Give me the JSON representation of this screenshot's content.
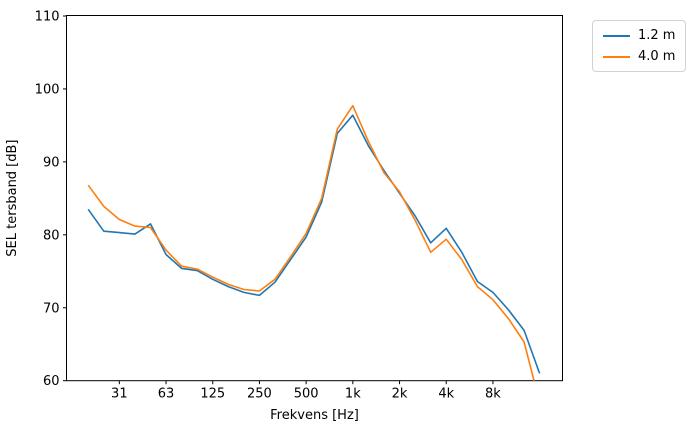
{
  "chart_data": {
    "type": "line",
    "title": "",
    "xlabel": "Frekvens [Hz]",
    "ylabel": "SEL tersband [dB]",
    "x_scale": "log",
    "x_unit": "Hz",
    "categories": [
      20,
      25,
      31.5,
      40,
      50,
      63,
      80,
      100,
      125,
      160,
      200,
      250,
      315,
      400,
      500,
      630,
      800,
      1000,
      1250,
      1600,
      2000,
      2500,
      3150,
      4000,
      5000,
      6300,
      8000,
      10000,
      12500,
      16000
    ],
    "series": [
      {
        "name": "1.2 m",
        "color": "#1f77b4",
        "values": [
          83.5,
          80.5,
          80.3,
          80.1,
          81.5,
          77.3,
          75.4,
          75.1,
          73.9,
          72.9,
          72.1,
          71.7,
          73.5,
          76.6,
          79.7,
          84.5,
          93.9,
          96.4,
          92.2,
          88.8,
          85.7,
          82.6,
          78.9,
          80.9,
          77.6,
          73.6,
          72.1,
          69.7,
          66.9,
          61.0
        ]
      },
      {
        "name": "4.0 m",
        "color": "#ff7f0e",
        "values": [
          86.8,
          83.9,
          82.1,
          81.2,
          81.0,
          77.9,
          75.7,
          75.3,
          74.2,
          73.2,
          72.5,
          72.3,
          73.9,
          77.0,
          80.2,
          85.0,
          94.5,
          97.7,
          92.8,
          88.5,
          85.9,
          82.0,
          77.6,
          79.4,
          76.6,
          72.9,
          71.1,
          68.5,
          65.3,
          57.0
        ]
      }
    ],
    "xticks": [
      {
        "label": "31",
        "band_index": 2
      },
      {
        "label": "63",
        "band_index": 5
      },
      {
        "label": "125",
        "band_index": 8
      },
      {
        "label": "250",
        "band_index": 11
      },
      {
        "label": "500",
        "band_index": 14
      },
      {
        "label": "1k",
        "band_index": 17
      },
      {
        "label": "2k",
        "band_index": 20
      },
      {
        "label": "4k",
        "band_index": 23
      },
      {
        "label": "8k",
        "band_index": 26
      }
    ],
    "yticks": [
      60,
      70,
      80,
      90,
      100,
      110
    ],
    "ylim": [
      60,
      110
    ],
    "grid": false,
    "legend_position": "outside upper right",
    "note": "4.0 m series is clipped by the 60 dB axis limit at 16 kHz"
  },
  "legend": {
    "items": [
      {
        "label": "1.2 m",
        "color": "#1f77b4"
      },
      {
        "label": "4.0 m",
        "color": "#ff7f0e"
      }
    ]
  }
}
